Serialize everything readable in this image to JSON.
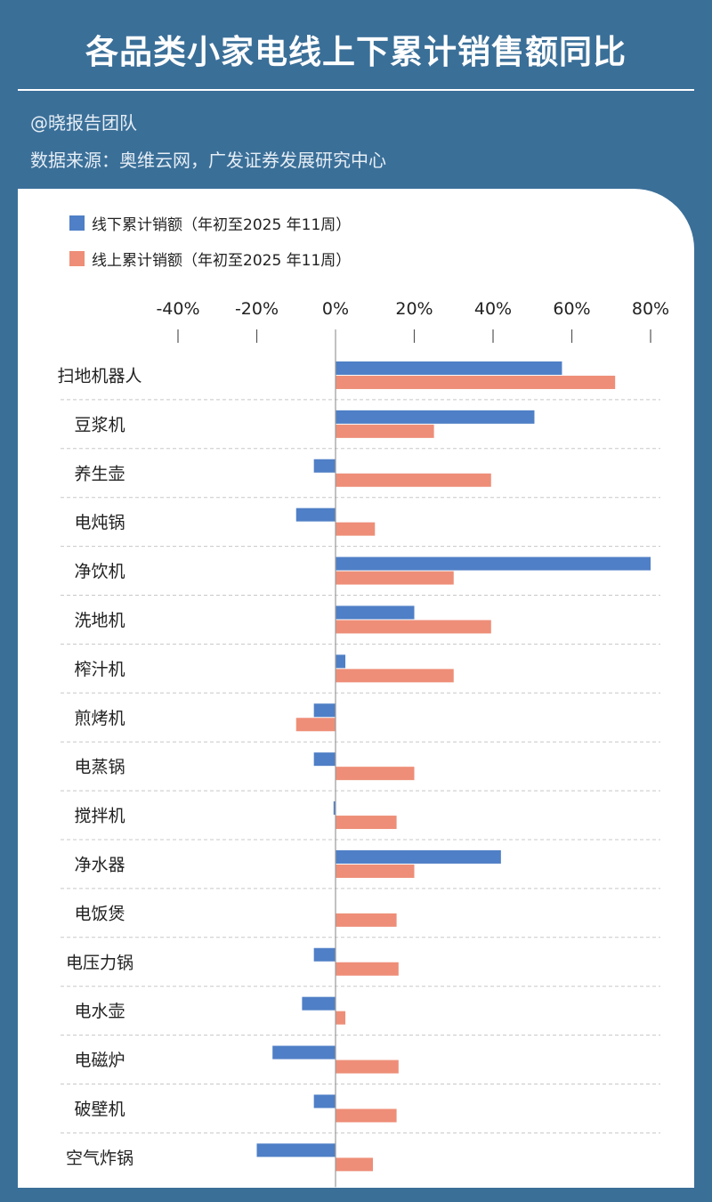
{
  "header": {
    "title": "各品类小家电线上下累计销售额同比",
    "author": "@晓报告团队",
    "source": "数据来源：奥维云网，广发证券发展研究中心"
  },
  "colors": {
    "offline": "#4f7fc6",
    "online": "#ee8e78",
    "background": "#3a6f98"
  },
  "chart_data": {
    "type": "bar",
    "orientation": "horizontal",
    "xlim": [
      -40,
      80
    ],
    "tick_labels": [
      "-40%",
      "-20%",
      "0%",
      "20%",
      "40%",
      "60%",
      "80%"
    ],
    "tick_values": [
      -40,
      -20,
      0,
      20,
      40,
      60,
      80
    ],
    "legend_position": "top-left",
    "categories": [
      "扫地机器人",
      "豆浆机",
      "养生壶",
      "电炖锅",
      "净饮机",
      "洗地机",
      "榨汁机",
      "煎烤机",
      "电蒸锅",
      "搅拌机",
      "净水器",
      "电饭煲",
      "电压力锅",
      "电水壶",
      "电磁炉",
      "破壁机",
      "空气炸锅"
    ],
    "series": [
      {
        "name": "线下累计销额（年初至2025 年11周）",
        "values": [
          57.5,
          50.5,
          -5.5,
          -10,
          80,
          20,
          2.5,
          -5.5,
          -5.5,
          -0.5,
          42,
          0,
          -5.5,
          -8.5,
          -16,
          -5.5,
          -20
        ]
      },
      {
        "name": "线上累计销额（年初至2025 年11周）",
        "values": [
          71,
          25,
          39.5,
          10,
          30,
          39.5,
          30,
          -10,
          20,
          15.5,
          20,
          15.5,
          16,
          2.5,
          16,
          15.5,
          9.5
        ]
      }
    ]
  }
}
